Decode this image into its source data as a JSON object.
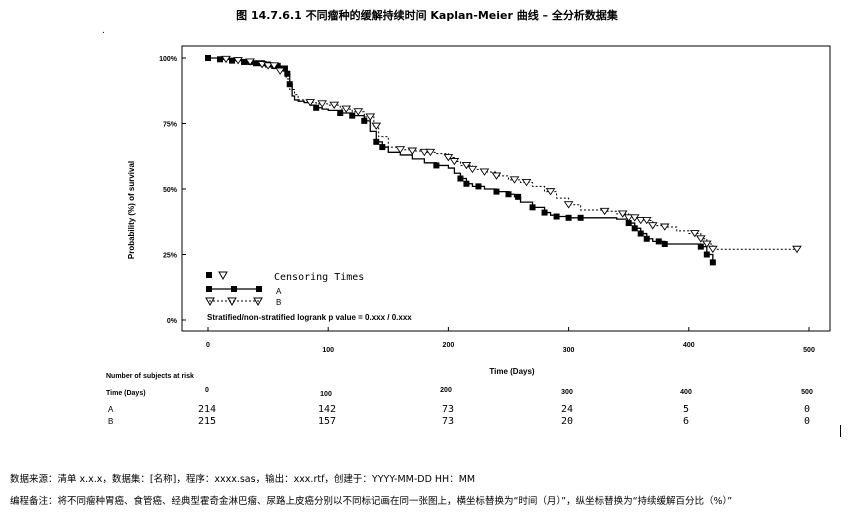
{
  "title": "图 14.7.6.1 不同瘤种的缓解持续时间 Kaplan-Meier 曲线 – 全分析数据集",
  "dot": ".",
  "footer": {
    "source": "数据来源：清单 x.x.x，数据集：[名称]，程序：xxxx.sas，输出：xxx.rtf，创建于：YYYY-MM-DD HH：MM",
    "note": "编程备注：将不同瘤种胃癌、食管癌、经典型霍奇金淋巴瘤、尿路上皮癌分别以不同标记画在同一张图上，横坐标替换为“时间（月）”，纵坐标替换为“持续缓解百分比（%）”"
  },
  "chart_data": {
    "type": "line",
    "xlabel": "Time (Days)",
    "ylabel": "Probability (%) of survival",
    "xlim": [
      0,
      500
    ],
    "ylim": [
      0,
      1
    ],
    "x_ticks": [
      "0",
      "100",
      "200",
      "300",
      "400",
      "500"
    ],
    "y_ticks": [
      "0%",
      "25%",
      "50%",
      "75%",
      "100%"
    ],
    "y_tick_values": [
      0,
      0.25,
      0.5,
      0.75,
      1.0
    ],
    "legend_title": "Censoring Times",
    "pvalue_text": "Stratified/non-stratified logrank p value = 0.xxx / 0.xxx",
    "series": [
      {
        "name": "A",
        "color": "#000000",
        "dash": false,
        "marker": "square",
        "x": [
          0,
          10,
          20,
          30,
          40,
          50,
          55,
          60,
          65,
          68,
          70,
          72,
          75,
          80,
          85,
          90,
          95,
          100,
          110,
          120,
          130,
          135,
          140,
          145,
          150,
          160,
          170,
          180,
          190,
          200,
          205,
          210,
          215,
          220,
          230,
          240,
          250,
          255,
          260,
          270,
          280,
          285,
          290,
          300,
          310,
          320,
          340,
          350,
          355,
          360,
          365,
          370,
          380,
          400,
          410,
          415,
          420
        ],
        "y": [
          1.0,
          0.995,
          0.99,
          0.985,
          0.98,
          0.975,
          0.97,
          0.96,
          0.94,
          0.9,
          0.855,
          0.84,
          0.835,
          0.83,
          0.82,
          0.81,
          0.805,
          0.8,
          0.79,
          0.78,
          0.76,
          0.72,
          0.68,
          0.66,
          0.64,
          0.63,
          0.615,
          0.6,
          0.59,
          0.58,
          0.56,
          0.54,
          0.52,
          0.51,
          0.5,
          0.49,
          0.48,
          0.47,
          0.45,
          0.43,
          0.41,
          0.4,
          0.395,
          0.39,
          0.39,
          0.39,
          0.385,
          0.37,
          0.35,
          0.33,
          0.31,
          0.3,
          0.29,
          0.29,
          0.28,
          0.25,
          0.22
        ],
        "censor_x": [
          10,
          20,
          30,
          35,
          40,
          45,
          50,
          55,
          58,
          62,
          64,
          66,
          68,
          90,
          110,
          120,
          130,
          140,
          145,
          190,
          210,
          215,
          225,
          240,
          250,
          258,
          270,
          280,
          290,
          300,
          310,
          350,
          355,
          360,
          365,
          375,
          380,
          410,
          415,
          420
        ]
      },
      {
        "name": "B",
        "color": "#000000",
        "dash": true,
        "marker": "triangle-down",
        "x": [
          0,
          10,
          20,
          30,
          40,
          50,
          60,
          65,
          68,
          72,
          75,
          80,
          90,
          100,
          110,
          120,
          130,
          138,
          142,
          150,
          160,
          170,
          180,
          190,
          200,
          205,
          210,
          220,
          230,
          240,
          250,
          260,
          270,
          280,
          290,
          300,
          310,
          330,
          340,
          350,
          360,
          370,
          380,
          390,
          400,
          410,
          415,
          420,
          490
        ],
        "y": [
          1.0,
          0.995,
          0.99,
          0.985,
          0.975,
          0.97,
          0.95,
          0.92,
          0.88,
          0.86,
          0.84,
          0.83,
          0.825,
          0.82,
          0.805,
          0.795,
          0.775,
          0.74,
          0.7,
          0.66,
          0.65,
          0.645,
          0.64,
          0.635,
          0.62,
          0.605,
          0.59,
          0.575,
          0.565,
          0.55,
          0.535,
          0.525,
          0.51,
          0.49,
          0.465,
          0.44,
          0.42,
          0.415,
          0.405,
          0.39,
          0.38,
          0.36,
          0.355,
          0.34,
          0.33,
          0.31,
          0.29,
          0.27,
          0.27
        ],
        "censor_x": [
          15,
          25,
          35,
          45,
          50,
          55,
          60,
          85,
          95,
          105,
          115,
          125,
          135,
          140,
          160,
          170,
          180,
          185,
          200,
          205,
          215,
          220,
          230,
          240,
          255,
          265,
          285,
          300,
          330,
          345,
          350,
          355,
          360,
          365,
          370,
          380,
          405,
          410,
          415,
          420,
          490
        ]
      }
    ],
    "risk_table": {
      "header": "Number of subjects at risk",
      "row_label_header": "Time (Days)",
      "times": [
        "0",
        "100",
        "200",
        "300",
        "400",
        "500"
      ],
      "rows": [
        {
          "label": "A",
          "values": [
            "214",
            "142",
            "73",
            "24",
            "5",
            "0"
          ]
        },
        {
          "label": "B",
          "values": [
            "215",
            "157",
            "73",
            "20",
            "6",
            "0"
          ]
        }
      ]
    }
  }
}
